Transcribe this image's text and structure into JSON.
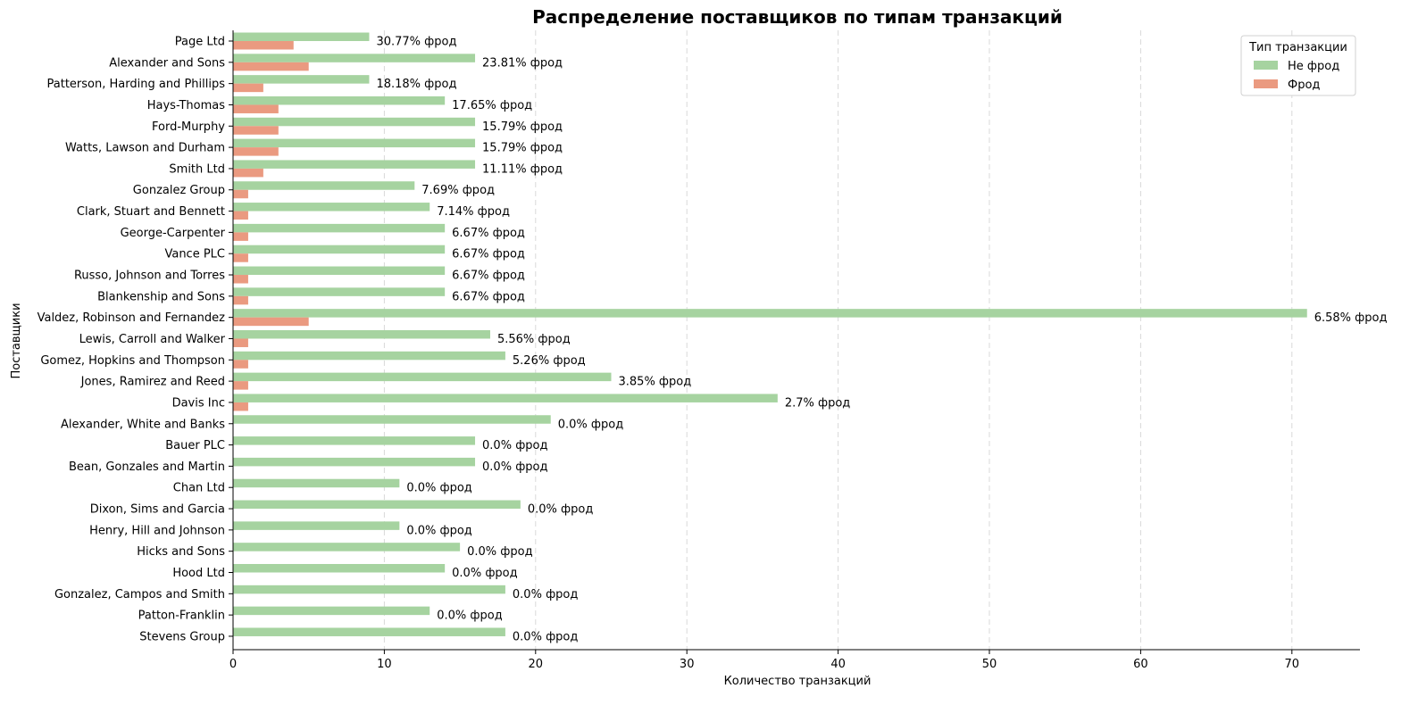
{
  "chart_data": {
    "type": "bar",
    "orientation": "horizontal",
    "title": "Распределение поставщиков по типам транзакций",
    "xlabel": "Количество транзакций",
    "ylabel": "Поставщики",
    "xlim": [
      0,
      74.5
    ],
    "xticks": [
      0,
      10,
      20,
      30,
      40,
      50,
      60,
      70
    ],
    "grid": "x-dashed",
    "legend": {
      "title": "Тип транзакции",
      "placement": "top-right"
    },
    "categories": [
      "Page Ltd",
      "Alexander and Sons",
      "Patterson, Harding and Phillips",
      "Hays-Thomas",
      "Ford-Murphy",
      "Watts, Lawson and Durham",
      "Smith Ltd",
      "Gonzalez Group",
      "Clark, Stuart and Bennett",
      "George-Carpenter",
      "Vance PLC",
      "Russo, Johnson and Torres",
      "Blankenship and Sons",
      "Valdez, Robinson and Fernandez",
      "Lewis, Carroll and Walker",
      "Gomez, Hopkins and Thompson",
      "Jones, Ramirez and Reed",
      "Davis Inc",
      "Alexander, White and Banks",
      "Bauer PLC",
      "Bean, Gonzales and Martin",
      "Chan Ltd",
      "Dixon, Sims and Garcia",
      "Henry, Hill and Johnson",
      "Hicks and Sons",
      "Hood Ltd",
      "Gonzalez, Campos and Smith",
      "Patton-Franklin",
      "Stevens Group"
    ],
    "series": [
      {
        "name": "Не фрод",
        "color": "#a6d3a0",
        "values": [
          9,
          16,
          9,
          14,
          16,
          16,
          16,
          12,
          13,
          14,
          14,
          14,
          14,
          71,
          17,
          18,
          25,
          36,
          21,
          16,
          16,
          11,
          19,
          11,
          15,
          14,
          18,
          13,
          18
        ]
      },
      {
        "name": "Фрод",
        "color": "#ea9a80",
        "values": [
          4,
          5,
          2,
          3,
          3,
          3,
          2,
          1,
          1,
          1,
          1,
          1,
          1,
          5,
          1,
          1,
          1,
          1,
          0,
          0,
          0,
          0,
          0,
          0,
          0,
          0,
          0,
          0,
          0
        ]
      }
    ],
    "annotations": [
      "30.77% фрод",
      "23.81% фрод",
      "18.18% фрод",
      "17.65% фрод",
      "15.79% фрод",
      "15.79% фрод",
      "11.11% фрод",
      "7.69% фрод",
      "7.14% фрод",
      "6.67% фрод",
      "6.67% фрод",
      "6.67% фрод",
      "6.67% фрод",
      "6.58% фрод",
      "5.56% фрод",
      "5.26% фрод",
      "3.85% фрод",
      "2.7% фрод",
      "0.0% фрод",
      "0.0% фрод",
      "0.0% фрод",
      "0.0% фрод",
      "0.0% фрод",
      "0.0% фрод",
      "0.0% фрод",
      "0.0% фрод",
      "0.0% фрод",
      "0.0% фрод",
      "0.0% фрод"
    ]
  }
}
